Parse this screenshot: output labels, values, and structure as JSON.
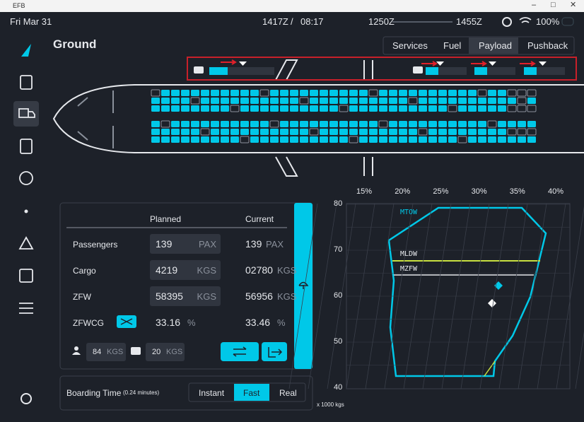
{
  "window": {
    "title": "EFB"
  },
  "status_bar": {
    "date": "Fri Mar 31",
    "utc_time": "1417Z",
    "separator": "/",
    "local_time": "08:17",
    "departure": "1250Z",
    "arrival": "1455Z",
    "battery": "100%"
  },
  "header": {
    "title": "Ground",
    "tabs": [
      "Services",
      "Fuel",
      "Payload",
      "Pushback"
    ]
  },
  "payload": {
    "headers": [
      "Planned",
      "Current"
    ],
    "rows": [
      {
        "label": "Passengers",
        "planned": "139",
        "planned_unit": "PAX",
        "current": "139",
        "current_unit": "PAX"
      },
      {
        "label": "Cargo",
        "planned": "4219",
        "planned_unit": "KGS",
        "current": "02780",
        "current_unit": "KGS"
      },
      {
        "label": "ZFW",
        "planned": "58395",
        "planned_unit": "KGS",
        "current": "56956",
        "current_unit": "KGS"
      },
      {
        "label": "ZFWCG",
        "planned": "33.16",
        "planned_unit": "%",
        "current": "33.46",
        "current_unit": "%"
      }
    ],
    "pax_weight": "84",
    "pax_weight_unit": "KGS",
    "bag_weight": "20",
    "bag_weight_unit": "KGS"
  },
  "boarding": {
    "label": "Boarding Time",
    "note": "(0.24 minutes)",
    "options": [
      "Instant",
      "Fast",
      "Real"
    ]
  },
  "cg_chart": {
    "x_labels": [
      "15%",
      "20%",
      "25%",
      "30%",
      "35%",
      "40%"
    ],
    "y_labels": [
      "80",
      "70",
      "60",
      "50",
      "40"
    ],
    "envelopes": [
      "MTOW",
      "MLDW",
      "MZFW"
    ],
    "unit": "x 1000 kgs"
  }
}
